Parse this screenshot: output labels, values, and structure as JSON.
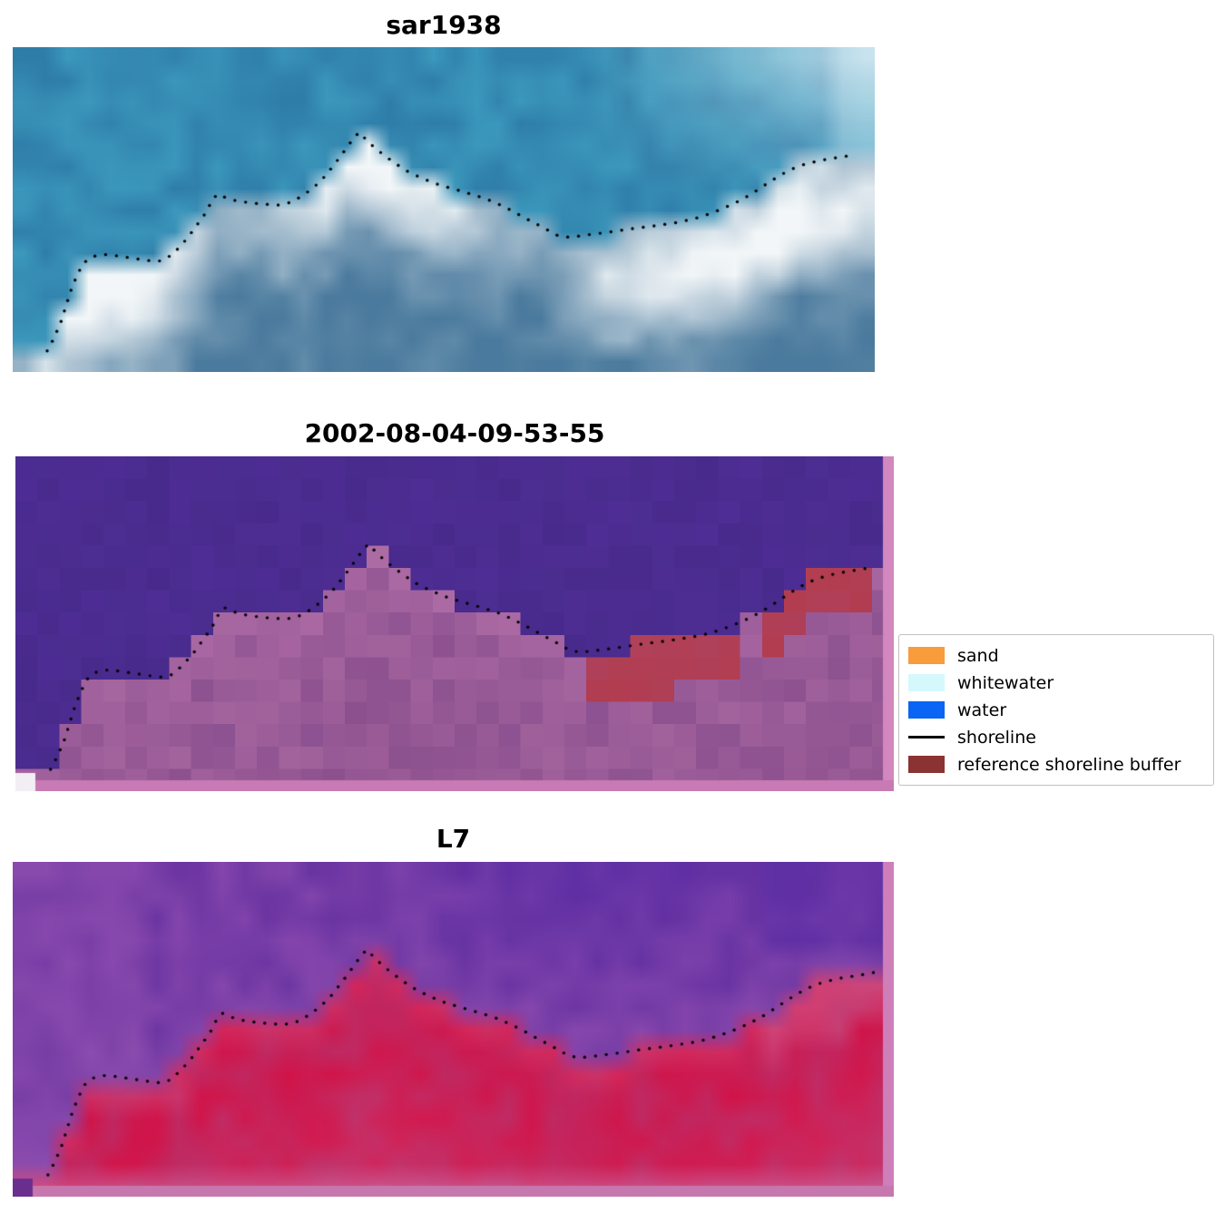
{
  "figure": {
    "background": "#ffffff",
    "shoreline_dot_color": "#000000"
  },
  "panels": [
    {
      "id": "sar",
      "title": "sar1938",
      "type": "sar",
      "seed": 7,
      "colors": {
        "water1": "#276f9f",
        "water2": "#43a6c6",
        "bright": "#e2f4f9",
        "landDeep": "#4a7a9d",
        "landWhite": "#f2f6f8"
      }
    },
    {
      "id": "classified",
      "title": "2002-08-04-09-53-55",
      "type": "classified",
      "seed": 11,
      "colors": {
        "water1": "#482a8c",
        "water2": "#523099",
        "mauve1": "#a2629c",
        "mauve2": "#8c5190",
        "mauveLight": "#c07ab2",
        "mauveDeep": "#8a4e8c",
        "red": "#b23c4f"
      },
      "strips": {
        "right": "#d287be",
        "bottom": "#c77ab3",
        "corner": "#f2eef4"
      }
    },
    {
      "id": "l7",
      "title": "L7",
      "type": "l7",
      "seed": 23,
      "colors": {
        "p1": "#8546ad",
        "p2": "#6a34a1",
        "indigo": "#4e27a4",
        "lav": "#9a58b2",
        "red1": "#d21348",
        "red2": "#bf2a63",
        "pinkDeep": "#c9548a",
        "pinkEdge": "#cb74ad",
        "redLight": "#dd5080",
        "pinkR": "#d06898"
      },
      "strips": {
        "right": "#ce7fba",
        "bottom": "#c678ae",
        "corner": "#6a2f8e"
      }
    }
  ],
  "legend": {
    "items": [
      {
        "label": "sand",
        "swatch": "patch",
        "color": "#f89c3c"
      },
      {
        "label": "whitewater",
        "swatch": "patch",
        "color": "#d4f8fc"
      },
      {
        "label": "water",
        "swatch": "patch",
        "color": "#0a64f4"
      },
      {
        "label": "shoreline",
        "swatch": "line",
        "color": "#000000"
      },
      {
        "label": "reference shoreline buffer",
        "swatch": "patch",
        "color": "#8b3232"
      }
    ]
  },
  "chart_data": {
    "type": "line",
    "title": "",
    "panel_titles": [
      "sar1938",
      "2002-08-04-09-53-55",
      "L7"
    ],
    "legend_entries": [
      "sand",
      "whitewater",
      "water",
      "shoreline",
      "reference shoreline buffer"
    ],
    "series": [
      {
        "name": "shoreline",
        "coords": "normalized [x fraction of panel width, y fraction of panel height]",
        "points": [
          [
            0.04,
            0.935
          ],
          [
            0.048,
            0.895
          ],
          [
            0.056,
            0.845
          ],
          [
            0.062,
            0.795
          ],
          [
            0.068,
            0.745
          ],
          [
            0.075,
            0.7
          ],
          [
            0.082,
            0.665
          ],
          [
            0.092,
            0.645
          ],
          [
            0.105,
            0.638
          ],
          [
            0.12,
            0.642
          ],
          [
            0.135,
            0.648
          ],
          [
            0.152,
            0.655
          ],
          [
            0.168,
            0.66
          ],
          [
            0.178,
            0.652
          ],
          [
            0.19,
            0.625
          ],
          [
            0.202,
            0.59
          ],
          [
            0.213,
            0.55
          ],
          [
            0.224,
            0.51
          ],
          [
            0.232,
            0.468
          ],
          [
            0.238,
            0.452
          ],
          [
            0.246,
            0.462
          ],
          [
            0.258,
            0.472
          ],
          [
            0.272,
            0.478
          ],
          [
            0.29,
            0.483
          ],
          [
            0.308,
            0.486
          ],
          [
            0.322,
            0.478
          ],
          [
            0.336,
            0.458
          ],
          [
            0.35,
            0.43
          ],
          [
            0.362,
            0.398
          ],
          [
            0.374,
            0.358
          ],
          [
            0.386,
            0.315
          ],
          [
            0.396,
            0.278
          ],
          [
            0.402,
            0.262
          ],
          [
            0.41,
            0.285
          ],
          [
            0.42,
            0.31
          ],
          [
            0.432,
            0.335
          ],
          [
            0.445,
            0.36
          ],
          [
            0.458,
            0.382
          ],
          [
            0.472,
            0.4
          ],
          [
            0.488,
            0.418
          ],
          [
            0.505,
            0.432
          ],
          [
            0.52,
            0.443
          ],
          [
            0.535,
            0.455
          ],
          [
            0.55,
            0.468
          ],
          [
            0.565,
            0.485
          ],
          [
            0.58,
            0.505
          ],
          [
            0.595,
            0.527
          ],
          [
            0.61,
            0.548
          ],
          [
            0.622,
            0.565
          ],
          [
            0.63,
            0.578
          ],
          [
            0.642,
            0.585
          ],
          [
            0.655,
            0.582
          ],
          [
            0.672,
            0.576
          ],
          [
            0.69,
            0.57
          ],
          [
            0.71,
            0.562
          ],
          [
            0.73,
            0.555
          ],
          [
            0.75,
            0.548
          ],
          [
            0.77,
            0.54
          ],
          [
            0.788,
            0.53
          ],
          [
            0.803,
            0.518
          ],
          [
            0.818,
            0.503
          ],
          [
            0.833,
            0.486
          ],
          [
            0.848,
            0.466
          ],
          [
            0.862,
            0.443
          ],
          [
            0.875,
            0.42
          ],
          [
            0.888,
            0.398
          ],
          [
            0.9,
            0.38
          ],
          [
            0.912,
            0.366
          ],
          [
            0.925,
            0.356
          ],
          [
            0.938,
            0.348
          ],
          [
            0.952,
            0.342
          ],
          [
            0.966,
            0.336
          ],
          [
            0.978,
            0.33
          ]
        ]
      }
    ]
  }
}
